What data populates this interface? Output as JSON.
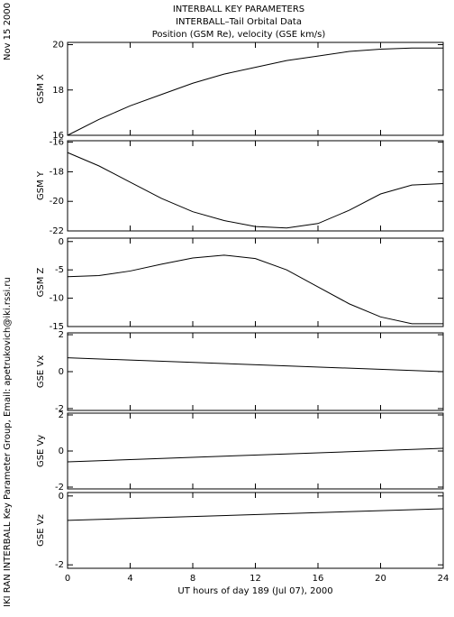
{
  "header": {
    "title": "INTERBALL KEY PARAMETERS",
    "subtitle": "INTERBALL–Tail Orbital Data",
    "caption": "Position (GSM Re), velocity (GSE km/s)",
    "date": "Nov 15 2000",
    "credit": "IKI RAN INTERBALL Key Parameter Group, Email: apetrukovich@iki.rssi.ru"
  },
  "chart_data": [
    {
      "type": "line",
      "ylabel": "GSM X",
      "x": [
        0,
        2,
        4,
        6,
        8,
        10,
        12,
        14,
        16,
        18,
        20,
        22,
        24
      ],
      "values": [
        16.0,
        16.7,
        17.3,
        17.8,
        18.3,
        18.7,
        19.0,
        19.3,
        19.5,
        19.7,
        19.8,
        19.85,
        19.85
      ],
      "xlim": [
        0,
        24
      ],
      "xticks": [
        0,
        4,
        8,
        12,
        16,
        20,
        24
      ],
      "ylim": [
        16,
        20.1
      ],
      "yticks": [
        16,
        18,
        20
      ],
      "color": "#000000"
    },
    {
      "type": "line",
      "ylabel": "GSM Y",
      "x": [
        0,
        2,
        4,
        6,
        8,
        10,
        12,
        14,
        16,
        18,
        20,
        22,
        24
      ],
      "values": [
        -16.7,
        -17.6,
        -18.7,
        -19.8,
        -20.7,
        -21.3,
        -21.7,
        -21.8,
        -21.5,
        -20.6,
        -19.5,
        -18.9,
        -18.8
      ],
      "xlim": [
        0,
        24
      ],
      "xticks": [
        0,
        4,
        8,
        12,
        16,
        20,
        24
      ],
      "ylim": [
        -22,
        -15.9
      ],
      "yticks": [
        -22,
        -20,
        -18,
        -16
      ],
      "color": "#000000"
    },
    {
      "type": "line",
      "ylabel": "GSM Z",
      "x": [
        0,
        2,
        4,
        6,
        8,
        10,
        12,
        14,
        16,
        18,
        20,
        22,
        24
      ],
      "values": [
        -6.2,
        -6.0,
        -5.2,
        -4.0,
        -2.9,
        -2.4,
        -3.0,
        -5.0,
        -8.0,
        -11.0,
        -13.3,
        -14.5,
        -14.5
      ],
      "xlim": [
        0,
        24
      ],
      "xticks": [
        0,
        4,
        8,
        12,
        16,
        20,
        24
      ],
      "ylim": [
        -15,
        0.6
      ],
      "yticks": [
        -15,
        -10,
        -5,
        0
      ],
      "color": "#000000"
    },
    {
      "type": "line",
      "ylabel": "GSE Vx",
      "x": [
        0,
        24
      ],
      "values": [
        0.75,
        0.0
      ],
      "xlim": [
        0,
        24
      ],
      "xticks": [
        0,
        4,
        8,
        12,
        16,
        20,
        24
      ],
      "ylim": [
        -2.1,
        2.1
      ],
      "yticks": [
        -2,
        0,
        2
      ],
      "color": "#000000"
    },
    {
      "type": "line",
      "ylabel": "GSE Vy",
      "x": [
        0,
        24
      ],
      "values": [
        -0.6,
        0.15
      ],
      "xlim": [
        0,
        24
      ],
      "xticks": [
        0,
        4,
        8,
        12,
        16,
        20,
        24
      ],
      "ylim": [
        -2.1,
        2.1
      ],
      "yticks": [
        -2,
        0,
        2
      ],
      "color": "#000000"
    },
    {
      "type": "line",
      "ylabel": "GSE Vz",
      "x": [
        0,
        24
      ],
      "values": [
        -0.71,
        -0.37
      ],
      "xlim": [
        0,
        24
      ],
      "xticks": [
        0,
        4,
        8,
        12,
        16,
        20,
        24
      ],
      "ylim": [
        -2.1,
        0.1
      ],
      "yticks": [
        -2,
        0
      ],
      "color": "#000000",
      "xlabel": "UT hours of day 189 (Jul 07), 2000"
    }
  ]
}
